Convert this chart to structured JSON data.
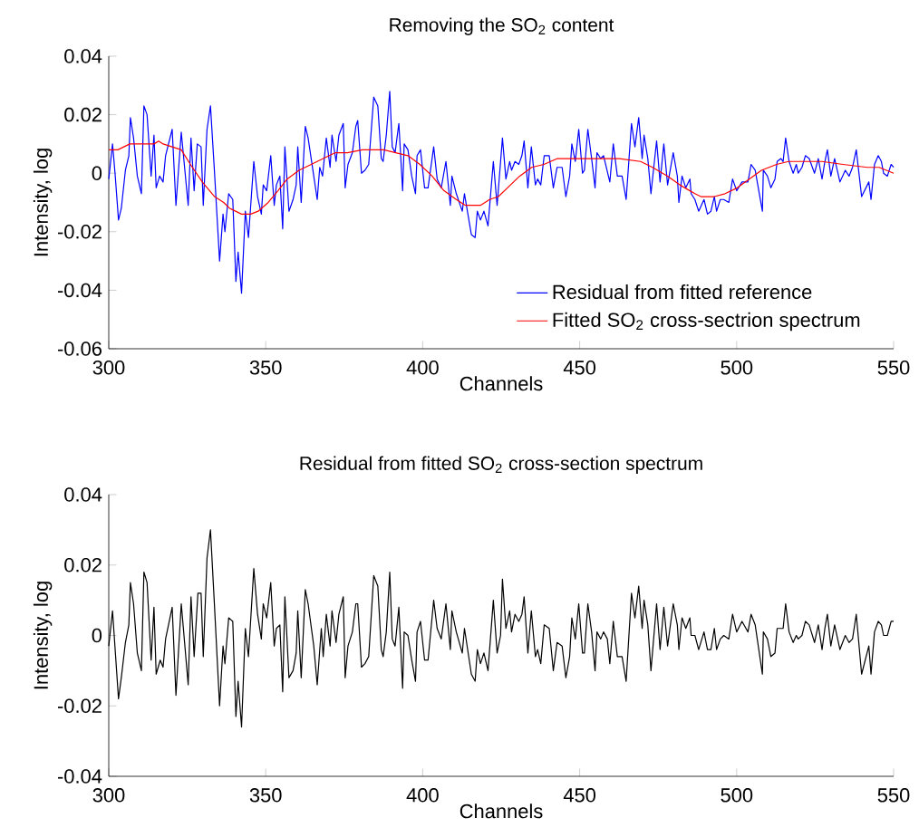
{
  "chart_data": [
    {
      "type": "line",
      "title": "Removing the SO$_{2}$ content",
      "xlabel": "Channels",
      "ylabel": "Intensity, log",
      "xlim": [
        300,
        550
      ],
      "xticks": [
        300,
        350,
        400,
        450,
        500,
        550
      ],
      "ylim": [
        -0.06,
        0.04
      ],
      "yticks": [
        -0.06,
        -0.04,
        -0.02,
        0,
        0.02,
        0.04
      ],
      "legend": "bottom right",
      "series": [
        {
          "name": "Residual from fitted reference",
          "color": "#0000ff",
          "x": [
            300,
            301.2,
            302.0,
            303.1,
            304.0,
            305.3,
            306.4,
            306.9,
            307.9,
            309.1,
            310.4,
            311.2,
            312.2,
            313.5,
            314.4,
            315.1,
            316.2,
            317.3,
            318.1,
            320.2,
            321.4,
            323.1,
            325.3,
            326.2,
            327.2,
            328.2,
            329.4,
            330.1,
            331.3,
            332.4,
            333.7,
            335.3,
            336.4,
            337.0,
            338.2,
            339.5,
            340.5,
            341.2,
            342.3,
            343.5,
            344.5,
            346.2,
            347.4,
            348.6,
            349.2,
            350.3,
            351.6,
            352.7,
            353.4,
            354.5,
            355.4,
            356.1,
            357.4,
            358.7,
            359.7,
            360.2,
            361.3,
            362.6,
            363.5,
            365.3,
            366.4,
            367.2,
            368.1,
            369.3,
            370.5,
            371.1,
            372.4,
            373.3,
            374.7,
            375.3,
            376.2,
            377.6,
            378.7,
            379.3,
            380.5,
            381.6,
            382.8,
            384.4,
            385.7,
            386.8,
            387.4,
            388.4,
            389.5,
            390.3,
            391.2,
            392.4,
            393.6,
            394.1,
            395.3,
            396.5,
            397.7,
            398.2,
            399.3,
            400.6,
            401.7,
            403.5,
            404.6,
            405.9,
            407.4,
            408.8,
            409.3,
            410.7,
            412.6,
            413.3,
            415.5,
            416.7,
            417.4,
            418.4,
            419.5,
            420.8,
            422.5,
            423.7,
            425.4,
            426.5,
            427.7,
            428.3,
            429.4,
            430.6,
            431.6,
            432.3,
            433.5,
            434.6,
            435.9,
            436.6,
            437.6,
            438.7,
            440.3,
            441.6,
            442.8,
            444.4,
            445.6,
            446.8,
            447.5,
            448.6,
            449.7,
            450.9,
            451.5,
            452.6,
            453.8,
            454.9,
            455.5,
            456.7,
            457.6,
            459.6,
            460.7,
            462.0,
            463.5,
            464.8,
            466.5,
            467.6,
            468.8,
            469.9,
            470.5,
            471.7,
            472.7,
            474.5,
            475.6,
            476.8,
            478.0,
            479.8,
            481.1,
            481.6,
            482.6,
            483.8,
            485.1,
            485.5,
            486.7,
            487.9,
            489.6,
            490.7,
            491.8,
            492.9,
            493.6,
            494.8,
            495.9,
            497.5,
            498.7,
            500.0,
            501.7,
            503.6,
            504.6,
            505.9,
            508.2,
            508.5,
            509.8,
            510.9,
            512.2,
            512.9,
            514.1,
            514.8,
            515.6,
            516.7,
            518.0,
            519.0,
            519.6,
            520.8,
            521.9,
            523.1,
            524.8,
            526.0,
            527.2,
            528.1,
            528.9,
            530.0,
            531.2,
            532.9,
            534.6,
            535.8,
            536.9,
            538.1,
            539.8,
            542.1,
            542.8,
            543.9,
            545.1,
            546.1,
            546.8,
            548.0,
            549.2,
            550
          ],
          "values": [
            -0.002,
            0.01,
            0.0,
            -0.016,
            -0.012,
            0.001,
            0.006,
            0.019,
            0.012,
            -0.001,
            -0.007,
            0.023,
            0.02,
            -0.001,
            0.013,
            -0.005,
            -0.001,
            -0.003,
            0.006,
            0.015,
            -0.011,
            0.014,
            -0.011,
            0.012,
            -0.006,
            0.01,
            0.009,
            -0.011,
            0.015,
            0.023,
            0.0,
            -0.03,
            -0.014,
            -0.02,
            -0.007,
            -0.009,
            -0.037,
            -0.027,
            -0.041,
            -0.013,
            -0.022,
            0.004,
            -0.008,
            -0.014,
            -0.004,
            -0.006,
            0.006,
            -0.011,
            -0.004,
            -0.001,
            -0.019,
            0.009,
            -0.013,
            -0.009,
            -0.004,
            0.009,
            -0.01,
            0.016,
            0.012,
            -0.001,
            -0.009,
            0.002,
            -0.001,
            0.012,
            0.002,
            0.013,
            0.004,
            0.013,
            0.017,
            -0.005,
            0.003,
            0.007,
            0.016,
            0.018,
            0.0,
            0.001,
            0.003,
            0.026,
            0.023,
            0.005,
            0.004,
            0.013,
            0.028,
            0.009,
            0.007,
            0.017,
            -0.006,
            0.01,
            0.008,
            -0.001,
            -0.007,
            0.006,
            0.008,
            -0.005,
            -0.005,
            0.009,
            -0.002,
            -0.005,
            0.004,
            -0.011,
            -0.001,
            -0.007,
            -0.013,
            -0.007,
            -0.021,
            -0.022,
            -0.013,
            -0.016,
            -0.013,
            -0.018,
            0.004,
            -0.011,
            0.012,
            -0.002,
            0.004,
            0.001,
            0.004,
            0.003,
            0.006,
            0.011,
            -0.005,
            0.009,
            -0.004,
            -0.002,
            -0.004,
            0.006,
            0.006,
            -0.005,
            0.002,
            0.002,
            -0.008,
            -0.001,
            0.01,
            0.004,
            0.015,
            0.0,
            0.001,
            0.015,
            0.005,
            -0.005,
            0.007,
            0.005,
            0.006,
            -0.003,
            0.01,
            -0.001,
            -0.001,
            -0.009,
            0.017,
            0.009,
            0.019,
            0.005,
            0.013,
            0.005,
            -0.007,
            0.011,
            -0.003,
            0.01,
            -0.004,
            0.007,
            -0.001,
            -0.01,
            -0.001,
            -0.005,
            -0.002,
            -0.007,
            -0.009,
            -0.013,
            -0.009,
            -0.014,
            -0.013,
            -0.008,
            -0.013,
            -0.009,
            -0.009,
            -0.01,
            -0.002,
            -0.006,
            -0.003,
            -0.003,
            0.003,
            0.001,
            -0.013,
            0.001,
            -0.001,
            -0.005,
            -0.002,
            0.004,
            0.005,
            0.004,
            0.012,
            0.004,
            0.0,
            0.003,
            0.0,
            0.002,
            0.006,
            0.005,
            0.0,
            0.005,
            -0.002,
            0.004,
            0.008,
            -0.001,
            0.005,
            -0.003,
            0.001,
            -0.001,
            0.002,
            0.008,
            -0.008,
            -0.003,
            -0.009,
            0.003,
            0.006,
            0.004,
            0.0,
            -0.001,
            0.003,
            0.002
          ]
        },
        {
          "name": "Fitted SO$_{2}$ cross-sectrion spectrum",
          "color": "#ff0000",
          "x": [
            300,
            302.9,
            304.8,
            306.7,
            310.6,
            314.4,
            315.9,
            317.3,
            320.2,
            323.1,
            326.0,
            329.8,
            333.7,
            336.6,
            338.5,
            342.3,
            345.2,
            347.6,
            350.8,
            353.9,
            356.8,
            360.6,
            364.5,
            368.3,
            372.2,
            376.0,
            380.8,
            387.6,
            391.4,
            395.3,
            399.1,
            403.0,
            406.8,
            410.7,
            413.6,
            418.4,
            421.3,
            424.1,
            427.0,
            430.9,
            434.7,
            438.6,
            442.9,
            453.0,
            462.6,
            469.4,
            473.2,
            478.0,
            481.9,
            486.7,
            488.6,
            492.9,
            496.3,
            500.2,
            504.0,
            507.9,
            512.7,
            516.5,
            527.1,
            533.9,
            541.6,
            545.4,
            550
          ],
          "values": [
            0.008,
            0.008,
            0.009,
            0.01,
            0.01,
            0.01,
            0.011,
            0.01,
            0.009,
            0.008,
            0.003,
            -0.003,
            -0.008,
            -0.01,
            -0.012,
            -0.014,
            -0.014,
            -0.013,
            -0.01,
            -0.006,
            -0.002,
            0.001,
            0.003,
            0.005,
            0.007,
            0.007,
            0.008,
            0.008,
            0.007,
            0.006,
            0.003,
            -0.001,
            -0.006,
            -0.009,
            -0.011,
            -0.011,
            -0.009,
            -0.008,
            -0.005,
            -0.001,
            0.002,
            0.003,
            0.005,
            0.005,
            0.005,
            0.004,
            0.002,
            -0.001,
            -0.004,
            -0.007,
            -0.008,
            -0.008,
            -0.007,
            -0.005,
            -0.002,
            0.001,
            0.003,
            0.004,
            0.004,
            0.003,
            0.002,
            0.002,
            0.0
          ]
        }
      ]
    },
    {
      "type": "line",
      "title": "Residual from fitted SO$_{2}$ cross-section spectrum",
      "xlabel": "Channels",
      "ylabel": "Intensity, log",
      "xlim": [
        300,
        550
      ],
      "xticks": [
        300,
        350,
        400,
        450,
        500,
        550
      ],
      "ylim": [
        -0.04,
        0.04
      ],
      "yticks": [
        -0.04,
        -0.02,
        0,
        0.02,
        0.04
      ],
      "series": [
        {
          "color": "#000000",
          "x": [
            300,
            301.2,
            303.1,
            304.0,
            305.3,
            306.4,
            306.9,
            307.9,
            309.1,
            310.4,
            311.2,
            312.2,
            313.5,
            314.4,
            315.1,
            316.4,
            317.3,
            318.1,
            320.2,
            321.4,
            323.1,
            325.3,
            326.2,
            327.2,
            328.4,
            329.4,
            330.1,
            331.3,
            332.4,
            333.7,
            335.3,
            336.4,
            337.0,
            338.2,
            339.5,
            340.5,
            341.2,
            342.3,
            343.5,
            344.5,
            346.2,
            347.4,
            348.6,
            349.2,
            350.3,
            351.6,
            352.7,
            353.4,
            354.5,
            355.4,
            356.1,
            357.4,
            358.7,
            359.7,
            360.2,
            361.3,
            362.6,
            363.5,
            365.3,
            366.4,
            367.7,
            368.3,
            369.3,
            370.5,
            371.1,
            372.4,
            373.3,
            374.7,
            375.3,
            376.2,
            377.6,
            378.7,
            379.3,
            380.5,
            381.6,
            382.8,
            384.4,
            385.7,
            386.8,
            387.4,
            388.4,
            389.5,
            390.3,
            391.2,
            392.4,
            393.6,
            394.1,
            395.3,
            396.5,
            397.7,
            398.2,
            399.3,
            400.6,
            401.7,
            403.5,
            404.6,
            405.9,
            407.4,
            408.8,
            409.3,
            410.7,
            412.6,
            413.3,
            415.5,
            416.7,
            417.4,
            418.4,
            419.5,
            420.8,
            422.5,
            423.7,
            424.8,
            425.4,
            426.5,
            427.7,
            428.3,
            429.4,
            430.6,
            431.6,
            432.3,
            433.5,
            434.6,
            435.9,
            436.6,
            437.6,
            438.7,
            440.3,
            441.6,
            442.8,
            444.4,
            445.6,
            446.8,
            447.5,
            448.6,
            449.7,
            450.9,
            451.5,
            452.6,
            453.8,
            454.9,
            455.5,
            456.7,
            457.6,
            458.8,
            459.6,
            460.7,
            462.0,
            463.5,
            464.8,
            466.5,
            467.6,
            468.8,
            469.9,
            470.5,
            471.7,
            472.7,
            474.5,
            475.6,
            476.8,
            478.0,
            479.8,
            481.1,
            481.6,
            482.6,
            483.8,
            485.1,
            485.5,
            486.7,
            487.9,
            489.6,
            490.7,
            491.8,
            492.9,
            493.6,
            494.8,
            495.9,
            497.5,
            498.7,
            500.0,
            501.7,
            503.6,
            504.6,
            505.9,
            508.2,
            508.5,
            509.8,
            510.9,
            512.2,
            512.9,
            514.1,
            514.8,
            515.6,
            516.7,
            518.0,
            519.0,
            519.6,
            520.8,
            521.9,
            523.1,
            524.8,
            526.0,
            527.2,
            528.1,
            528.9,
            530.0,
            531.2,
            532.9,
            534.6,
            535.8,
            536.9,
            538.1,
            539.8,
            542.1,
            542.8,
            543.9,
            545.1,
            546.1,
            546.8,
            548.0,
            549.2,
            550
          ],
          "values": [
            -0.003,
            0.007,
            -0.018,
            -0.012,
            -0.002,
            0.003,
            0.015,
            0.009,
            -0.005,
            -0.01,
            0.018,
            0.015,
            -0.007,
            0.008,
            -0.011,
            -0.007,
            -0.009,
            -0.001,
            0.008,
            -0.017,
            0.009,
            -0.014,
            0.011,
            -0.006,
            0.012,
            0.012,
            -0.006,
            0.022,
            0.03,
            0.008,
            -0.02,
            -0.003,
            -0.008,
            0.005,
            0.004,
            -0.023,
            -0.013,
            -0.026,
            0.002,
            -0.006,
            0.019,
            0.006,
            -0.001,
            0.009,
            0.005,
            0.015,
            -0.003,
            0.002,
            0.003,
            -0.016,
            0.011,
            -0.012,
            -0.01,
            -0.005,
            0.007,
            -0.012,
            0.013,
            0.009,
            -0.003,
            -0.014,
            0.002,
            -0.006,
            0.006,
            -0.003,
            0.007,
            -0.002,
            0.006,
            0.011,
            -0.012,
            -0.003,
            0.001,
            0.009,
            0.009,
            -0.009,
            -0.008,
            -0.006,
            0.017,
            0.014,
            -0.004,
            -0.006,
            0.001,
            0.018,
            -0.001,
            -0.003,
            0.008,
            -0.015,
            0.001,
            0.0,
            -0.007,
            -0.013,
            0.001,
            0.004,
            -0.007,
            -0.007,
            0.01,
            0.002,
            -0.001,
            0.009,
            -0.004,
            0.007,
            0.001,
            -0.005,
            0.002,
            -0.011,
            -0.013,
            -0.004,
            -0.008,
            -0.005,
            -0.01,
            0.01,
            -0.005,
            0.0,
            0.016,
            0.002,
            0.007,
            0.001,
            0.006,
            0.004,
            0.006,
            0.011,
            -0.005,
            0.007,
            -0.006,
            -0.004,
            -0.008,
            0.003,
            0.002,
            -0.01,
            -0.002,
            -0.003,
            -0.012,
            -0.006,
            0.005,
            -0.001,
            0.009,
            -0.005,
            -0.005,
            0.009,
            0.001,
            -0.01,
            0.001,
            -0.001,
            0.001,
            -0.001,
            -0.008,
            0.004,
            -0.006,
            -0.006,
            -0.013,
            0.012,
            0.005,
            0.014,
            0.002,
            0.01,
            0.003,
            -0.01,
            0.009,
            -0.004,
            0.008,
            -0.003,
            0.009,
            0.003,
            -0.004,
            0.005,
            0.002,
            0.005,
            0.0,
            0.0,
            -0.004,
            0.001,
            -0.004,
            -0.004,
            0.002,
            -0.004,
            -0.001,
            0.0,
            -0.001,
            0.006,
            0.001,
            0.004,
            0.001,
            0.006,
            0.003,
            -0.011,
            0.001,
            -0.001,
            -0.006,
            -0.005,
            0.002,
            0.002,
            0.002,
            0.009,
            0.001,
            -0.002,
            0.0,
            -0.001,
            0.0,
            0.004,
            0.003,
            -0.002,
            0.003,
            -0.004,
            0.002,
            0.006,
            -0.003,
            0.003,
            -0.004,
            0.0,
            -0.002,
            -0.001,
            0.006,
            -0.011,
            -0.003,
            -0.011,
            0.001,
            0.004,
            0.003,
            0.0,
            0.0,
            0.004,
            0.004
          ]
        }
      ]
    }
  ]
}
